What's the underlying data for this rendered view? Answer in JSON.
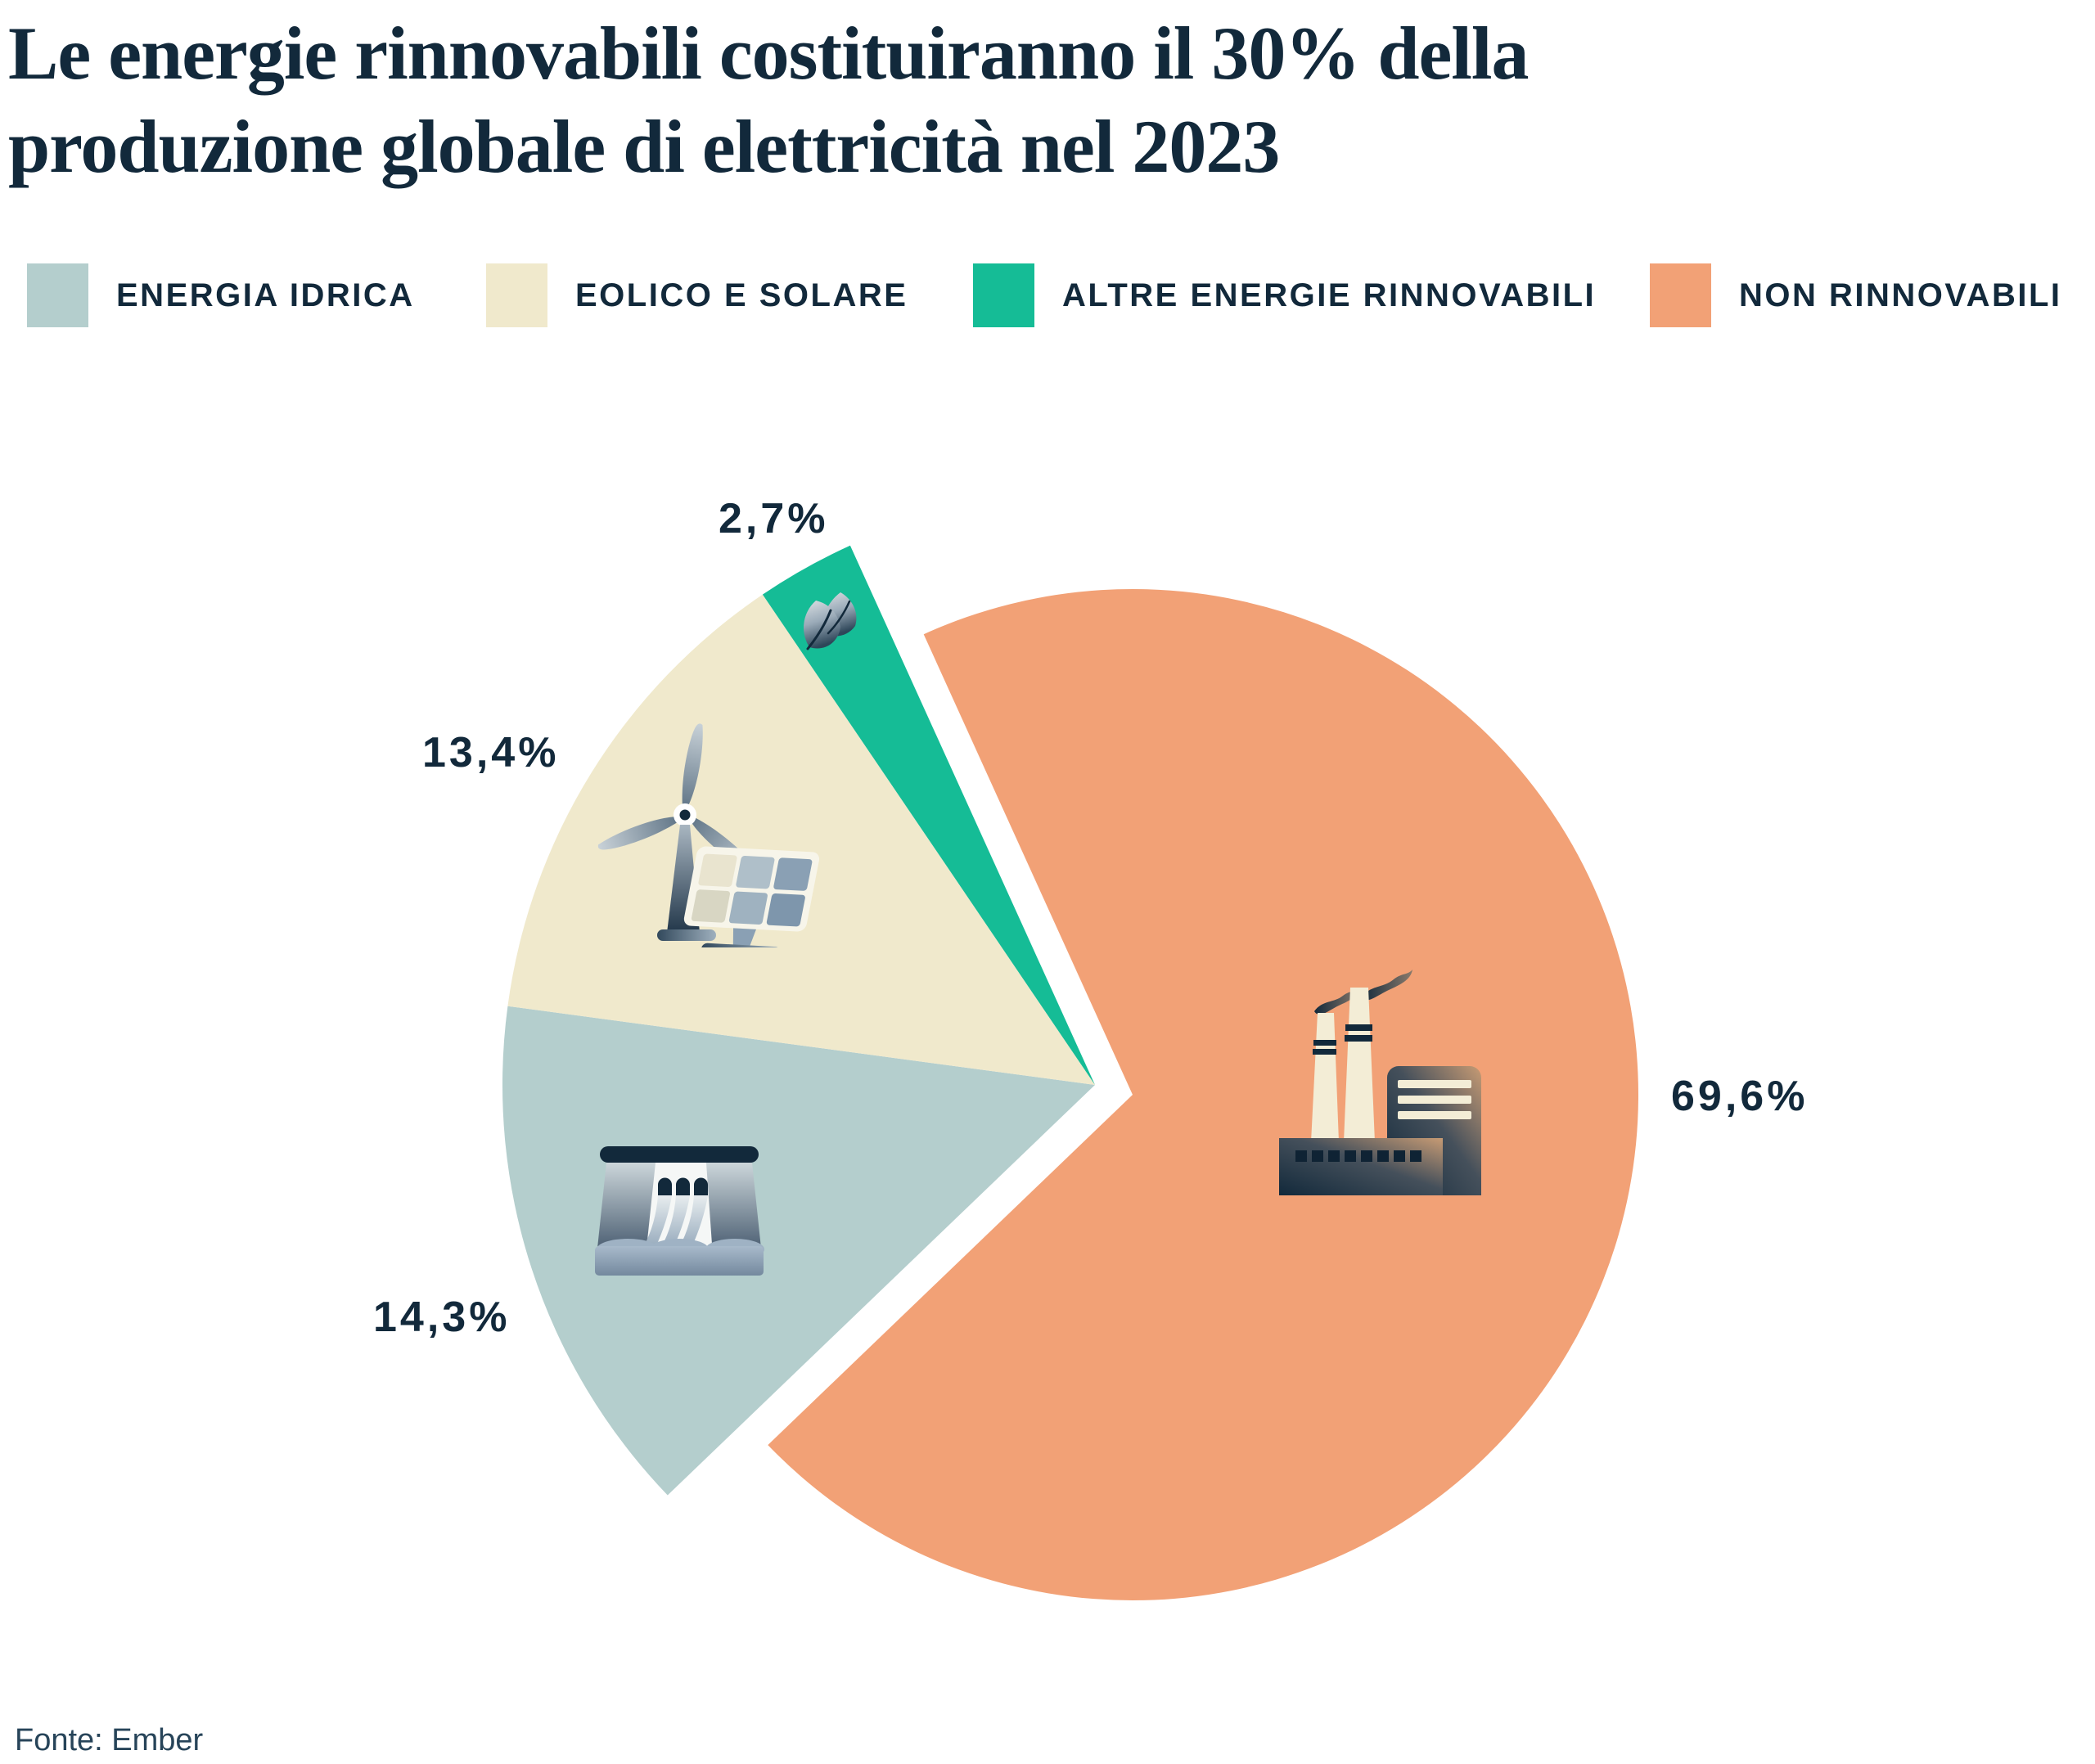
{
  "title": {
    "line1": "Le energie rinnovabili costituiranno il 30% della",
    "line2": "produzione globale di elettricità nel 2023"
  },
  "legend": [
    {
      "label": "ENERGIA IDRICA",
      "color": "#B4CECD"
    },
    {
      "label": "EOLICO E SOLARE",
      "color": "#F0E9CC"
    },
    {
      "label": "ALTRE ENERGIE RINNOVABILI",
      "color": "#15BC96"
    },
    {
      "label": "NON RINNOVABILI",
      "color": "#F2A176"
    }
  ],
  "chart_data": {
    "type": "pie",
    "title": "Le energie rinnovabili costituiranno il 30% della produzione globale di elettricità nel 2023",
    "unit": "%",
    "slices": [
      {
        "label": "NON RINNOVABILI",
        "value": 69.6,
        "display_value": "69,6%",
        "color": "#F2A176",
        "radius": 618,
        "exploded": false,
        "icon": "factory-icon"
      },
      {
        "label": "ENERGIA IDRICA",
        "value": 14.3,
        "display_value": "14,3%",
        "color": "#B4CECD",
        "radius": 724,
        "exploded": true,
        "icon": "dam-icon"
      },
      {
        "label": "EOLICO E SOLARE",
        "value": 13.4,
        "display_value": "13,4%",
        "color": "#F0E9CC",
        "radius": 724,
        "exploded": true,
        "icon": "wind-turbine-solar-panel-icon"
      },
      {
        "label": "ALTRE ENERGIE RINNOVABILI",
        "value": 2.7,
        "display_value": "2,7%",
        "color": "#15BC96",
        "radius": 724,
        "exploded": true,
        "icon": "leaf-icon"
      }
    ],
    "layout": {
      "center": [
        1384,
        1338
      ],
      "start_angle_deg": 335.6,
      "explode_offset": [
        -46,
        -12
      ],
      "legend_position": "top",
      "labels": "outside"
    },
    "source": "Fonte: Ember"
  },
  "footer": {
    "text": "Fonte: Ember"
  }
}
